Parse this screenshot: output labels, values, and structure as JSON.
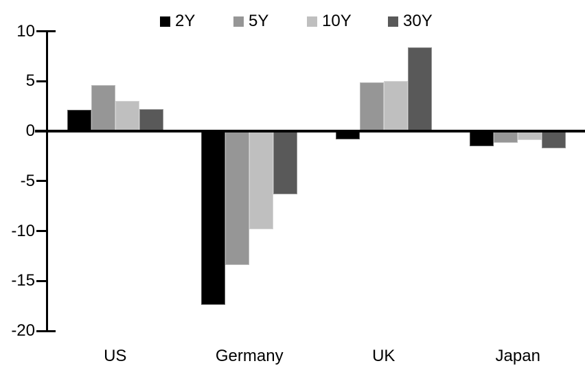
{
  "chart_data": {
    "type": "bar",
    "title": "",
    "xlabel": "",
    "ylabel": "",
    "categories": [
      "US",
      "Germany",
      "UK",
      "Japan"
    ],
    "series": [
      {
        "name": "2Y",
        "color": "#000000",
        "values": [
          2.1,
          -17.4,
          -0.8,
          -1.5
        ]
      },
      {
        "name": "5Y",
        "color": "#969696",
        "values": [
          4.6,
          -13.4,
          4.9,
          -1.2
        ]
      },
      {
        "name": "10Y",
        "color": "#bfbfbf",
        "values": [
          3.0,
          -9.8,
          5.0,
          -0.9
        ]
      },
      {
        "name": "30Y",
        "color": "#595959",
        "values": [
          2.2,
          -6.3,
          8.4,
          -1.7
        ]
      }
    ],
    "ylim": [
      -20,
      10
    ],
    "yticks": [
      10,
      5,
      0,
      -5,
      -10,
      -15,
      -20
    ],
    "grid": false,
    "legend_position": "top-center",
    "background_color": "#ffffff",
    "axis_color": "#000000"
  }
}
